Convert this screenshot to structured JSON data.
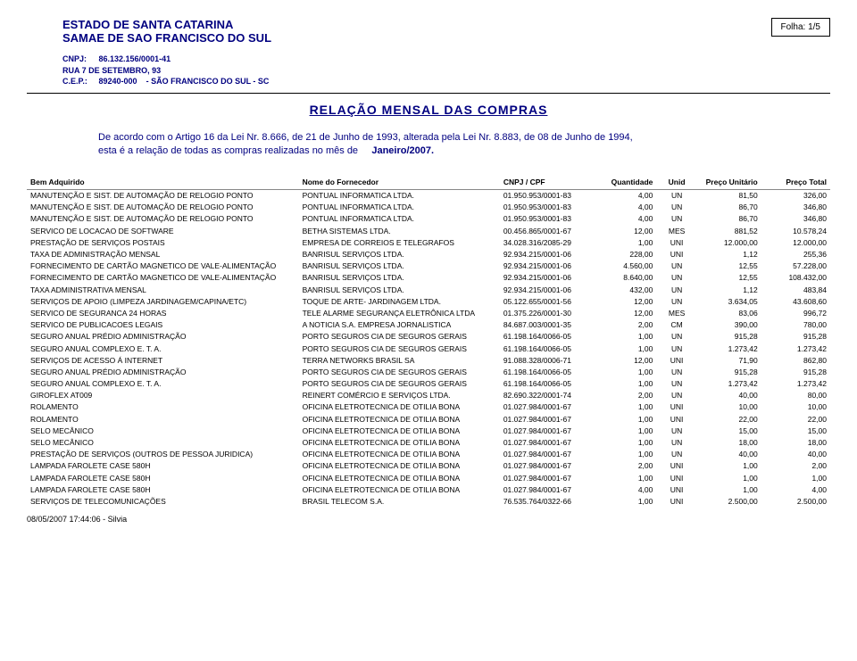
{
  "header": {
    "folha_label": "Folha:",
    "folha_value": "1/5",
    "estado": "ESTADO DE SANTA CATARINA",
    "samae": "SAMAE DE SAO FRANCISCO DO SUL",
    "cnpj_label": "CNPJ:",
    "cnpj_value": "86.132.156/0001-41",
    "endereco": "RUA 7 DE SETEMBRO, 93",
    "cep_label": "C.E.P.:",
    "cep_value": "89240-000",
    "cidade": "- SÃO FRANCISCO DO SUL - SC"
  },
  "report_title": "RELAÇÃO  MENSAL  DAS  COMPRAS",
  "intro": {
    "line1": "De acordo com o Artigo 16 da Lei Nr. 8.666, de 21 de Junho de 1993, alterada pela Lei Nr. 8.883, de 08 de Junho de 1994,",
    "line2_prefix": "esta é a relação de todas as compras realizadas no mês de",
    "month": "Janeiro/2007."
  },
  "columns": {
    "bem": "Bem Adquirido",
    "fornecedor": "Nome do Fornecedor",
    "cnpj": "CNPJ / CPF",
    "quantidade": "Quantidade",
    "unid": "Unid",
    "preco_unit": "Preço Unitário",
    "preco_total": "Preço Total"
  },
  "rows": [
    {
      "bem": "MANUTENÇÃO E SIST. DE AUTOMAÇÃO DE RELOGIO PONTO",
      "forn": "PONTUAL INFORMATICA LTDA.",
      "cnpj": "01.950.953/0001-83",
      "qtd": "4,00",
      "unid": "UN",
      "pu": "81,50",
      "pt": "326,00"
    },
    {
      "bem": "MANUTENÇÃO E SIST. DE AUTOMAÇÃO DE RELOGIO PONTO",
      "forn": "PONTUAL INFORMATICA LTDA.",
      "cnpj": "01.950.953/0001-83",
      "qtd": "4,00",
      "unid": "UN",
      "pu": "86,70",
      "pt": "346,80"
    },
    {
      "bem": "MANUTENÇÃO E SIST. DE AUTOMAÇÃO DE RELOGIO PONTO",
      "forn": "PONTUAL INFORMATICA LTDA.",
      "cnpj": "01.950.953/0001-83",
      "qtd": "4,00",
      "unid": "UN",
      "pu": "86,70",
      "pt": "346,80"
    },
    {
      "bem": "SERVICO DE LOCACAO DE SOFTWARE",
      "forn": "BETHA SISTEMAS LTDA.",
      "cnpj": "00.456.865/0001-67",
      "qtd": "12,00",
      "unid": "MES",
      "pu": "881,52",
      "pt": "10.578,24"
    },
    {
      "bem": "PRESTAÇÃO DE SERVIÇOS POSTAIS",
      "forn": "EMPRESA DE CORREIOS E TELEGRAFOS",
      "cnpj": "34.028.316/2085-29",
      "qtd": "1,00",
      "unid": "UNI",
      "pu": "12.000,00",
      "pt": "12.000,00"
    },
    {
      "bem": "TAXA DE ADMINISTRAÇÃO MENSAL",
      "forn": "BANRISUL SERVIÇOS LTDA.",
      "cnpj": "92.934.215/0001-06",
      "qtd": "228,00",
      "unid": "UNI",
      "pu": "1,12",
      "pt": "255,36"
    },
    {
      "bem": "FORNECIMENTO DE CARTÃO MAGNETICO DE VALE-ALIMENTAÇÃO",
      "forn": "BANRISUL SERVIÇOS LTDA.",
      "cnpj": "92.934.215/0001-06",
      "qtd": "4.560,00",
      "unid": "UN",
      "pu": "12,55",
      "pt": "57.228,00"
    },
    {
      "bem": "FORNECIMENTO DE CARTÃO MAGNETICO DE VALE-ALIMENTAÇÃO",
      "forn": "BANRISUL SERVIÇOS LTDA.",
      "cnpj": "92.934.215/0001-06",
      "qtd": "8.640,00",
      "unid": "UN",
      "pu": "12,55",
      "pt": "108.432,00"
    },
    {
      "bem": "TAXA ADMINISTRATIVA MENSAL",
      "forn": "BANRISUL SERVIÇOS LTDA.",
      "cnpj": "92.934.215/0001-06",
      "qtd": "432,00",
      "unid": "UN",
      "pu": "1,12",
      "pt": "483,84"
    },
    {
      "bem": "SERVIÇOS DE APOIO (LIMPEZA JARDINAGEM/CAPINA/ETC)",
      "forn": "TOQUE DE ARTE- JARDINAGEM LTDA.",
      "cnpj": "05.122.655/0001-56",
      "qtd": "12,00",
      "unid": "UN",
      "pu": "3.634,05",
      "pt": "43.608,60"
    },
    {
      "bem": "SERVICO DE SEGURANCA 24 HORAS",
      "forn": "TELE ALARME SEGURANÇA ELETRÔNICA LTDA",
      "cnpj": "01.375.226/0001-30",
      "qtd": "12,00",
      "unid": "MES",
      "pu": "83,06",
      "pt": "996,72"
    },
    {
      "bem": "SERVICO DE PUBLICACOES LEGAIS",
      "forn": "A NOTICIA S.A. EMPRESA JORNALISTICA",
      "cnpj": "84.687.003/0001-35",
      "qtd": "2,00",
      "unid": "CM",
      "pu": "390,00",
      "pt": "780,00"
    },
    {
      "bem": "SEGURO ANUAL PRÉDIO ADMINISTRAÇÃO",
      "forn": "PORTO SEGUROS CIA DE SEGUROS GERAIS",
      "cnpj": "61.198.164/0066-05",
      "qtd": "1,00",
      "unid": "UN",
      "pu": "915,28",
      "pt": "915,28"
    },
    {
      "bem": "SEGURO ANUAL COMPLEXO E. T. A.",
      "forn": "PORTO SEGUROS CIA DE SEGUROS GERAIS",
      "cnpj": "61.198.164/0066-05",
      "qtd": "1,00",
      "unid": "UN",
      "pu": "1.273,42",
      "pt": "1.273,42"
    },
    {
      "bem": "SERVIÇOS DE ACESSO Á INTERNET",
      "forn": "TERRA NETWORKS BRASIL SA",
      "cnpj": "91.088.328/0006-71",
      "qtd": "12,00",
      "unid": "UNI",
      "pu": "71,90",
      "pt": "862,80"
    },
    {
      "bem": "SEGURO ANUAL PRÉDIO ADMINISTRAÇÃO",
      "forn": "PORTO SEGUROS CIA DE SEGUROS GERAIS",
      "cnpj": "61.198.164/0066-05",
      "qtd": "1,00",
      "unid": "UN",
      "pu": "915,28",
      "pt": "915,28"
    },
    {
      "bem": "SEGURO ANUAL COMPLEXO E. T. A.",
      "forn": "PORTO SEGUROS CIA DE SEGUROS GERAIS",
      "cnpj": "61.198.164/0066-05",
      "qtd": "1,00",
      "unid": "UN",
      "pu": "1.273,42",
      "pt": "1.273,42"
    },
    {
      "bem": "GIROFLEX AT009",
      "forn": "REINERT COMÉRCIO E SERVIÇOS LTDA.",
      "cnpj": "82.690.322/0001-74",
      "qtd": "2,00",
      "unid": "UN",
      "pu": "40,00",
      "pt": "80,00"
    },
    {
      "bem": "ROLAMENTO",
      "forn": "OFICINA ELETROTECNICA DE OTILIA BONA",
      "cnpj": "01.027.984/0001-67",
      "qtd": "1,00",
      "unid": "UNI",
      "pu": "10,00",
      "pt": "10,00"
    },
    {
      "bem": "ROLAMENTO",
      "forn": "OFICINA ELETROTECNICA DE OTILIA BONA",
      "cnpj": "01.027.984/0001-67",
      "qtd": "1,00",
      "unid": "UNI",
      "pu": "22,00",
      "pt": "22,00"
    },
    {
      "bem": "SELO MECÂNICO",
      "forn": "OFICINA ELETROTECNICA DE OTILIA BONA",
      "cnpj": "01.027.984/0001-67",
      "qtd": "1,00",
      "unid": "UN",
      "pu": "15,00",
      "pt": "15,00"
    },
    {
      "bem": "SELO MECÂNICO",
      "forn": "OFICINA ELETROTECNICA DE OTILIA BONA",
      "cnpj": "01.027.984/0001-67",
      "qtd": "1,00",
      "unid": "UN",
      "pu": "18,00",
      "pt": "18,00"
    },
    {
      "bem": "PRESTAÇÃO DE SERVIÇOS (OUTROS DE PESSOA JURIDICA)",
      "forn": "OFICINA ELETROTECNICA DE OTILIA BONA",
      "cnpj": "01.027.984/0001-67",
      "qtd": "1,00",
      "unid": "UN",
      "pu": "40,00",
      "pt": "40,00"
    },
    {
      "bem": "LAMPADA FAROLETE CASE 580H",
      "forn": "OFICINA ELETROTECNICA DE OTILIA BONA",
      "cnpj": "01.027.984/0001-67",
      "qtd": "2,00",
      "unid": "UNI",
      "pu": "1,00",
      "pt": "2,00"
    },
    {
      "bem": "LAMPADA FAROLETE CASE 580H",
      "forn": "OFICINA ELETROTECNICA DE OTILIA BONA",
      "cnpj": "01.027.984/0001-67",
      "qtd": "1,00",
      "unid": "UNI",
      "pu": "1,00",
      "pt": "1,00"
    },
    {
      "bem": "LAMPADA FAROLETE CASE 580H",
      "forn": "OFICINA ELETROTECNICA DE OTILIA BONA",
      "cnpj": "01.027.984/0001-67",
      "qtd": "4,00",
      "unid": "UNI",
      "pu": "1,00",
      "pt": "4,00"
    },
    {
      "bem": "SERVIÇOS DE TELECOMUNICAÇÕES",
      "forn": "BRASIL TELECOM S.A.",
      "cnpj": "76.535.764/0322-66",
      "qtd": "1,00",
      "unid": "UNI",
      "pu": "2.500,00",
      "pt": "2.500,00"
    }
  ],
  "footer": "08/05/2007  17:44:06 - Silvia"
}
